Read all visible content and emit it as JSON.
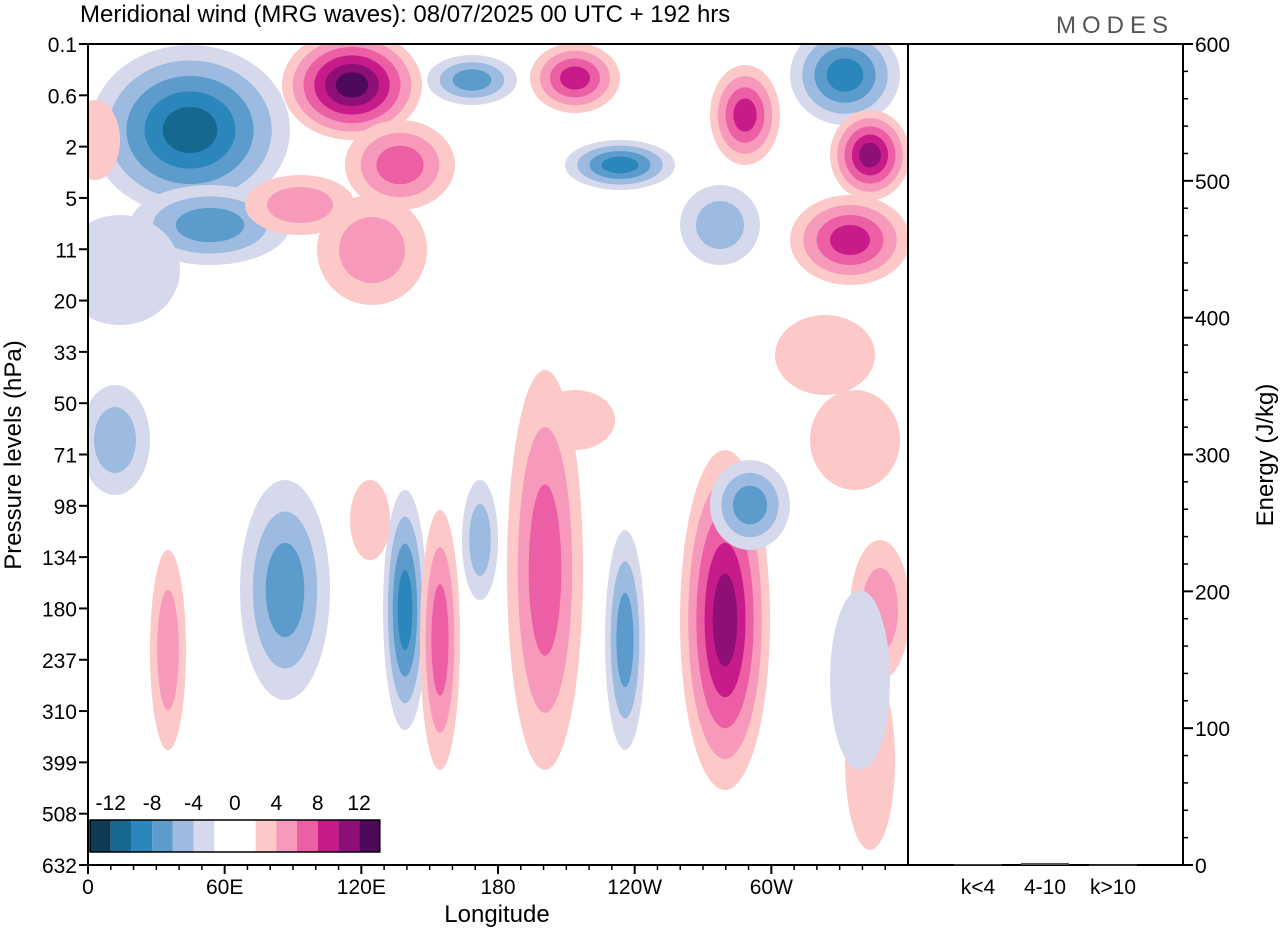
{
  "title": "Meridional wind (MRG waves):  08/07/2025  00 UTC  + 192 hrs",
  "brand": "MODES",
  "chart_data": [
    {
      "type": "heatmap",
      "title": "Meridional wind (MRG waves):  08/07/2025  00 UTC  + 192 hrs",
      "xlabel": "Longitude",
      "ylabel": "Pressure levels (hPa)",
      "x_ticks": [
        "0",
        "60E",
        "120E",
        "180",
        "120W",
        "60W"
      ],
      "x_range_deg": [
        0,
        360
      ],
      "y_ticks": [
        "0.1",
        "0.6",
        "2",
        "5",
        "11",
        "20",
        "33",
        "50",
        "71",
        "98",
        "134",
        "180",
        "237",
        "310",
        "399",
        "508",
        "632"
      ],
      "colorbar": {
        "tick_labels": [
          "-12",
          "-8",
          "-4",
          "0",
          "4",
          "8",
          "12"
        ],
        "colors": [
          "#0f3a56",
          "#176891",
          "#2a86bb",
          "#5b9ccc",
          "#9dbbe0",
          "#d6d9ec",
          "#ffffff",
          "#ffffff",
          "#fcc8c8",
          "#f799bb",
          "#ec5fa5",
          "#c71b8a",
          "#8e0f76",
          "#4e0a5a"
        ]
      },
      "contours": {
        "negative": [
          [
            0,
            0.6,
            0.36
          ],
          [
            2,
            0.47,
            0.67
          ],
          [
            3,
            0.44,
            0.36
          ],
          [
            4,
            0.9,
            0.3
          ],
          [
            6,
            0.57,
            0.46
          ],
          [
            7,
            0.95,
            0.42
          ],
          [
            8,
            0.28,
            0.56
          ],
          [
            9,
            0.63,
            0.52
          ],
          [
            10,
            0.98,
            0.26
          ],
          [
            11,
            0.1,
            0.7
          ],
          [
            13,
            0.54,
            0.51
          ],
          [
            14,
            0.04,
            0.86
          ]
        ],
        "positive": [
          [
            1,
            0.55,
            0.76
          ],
          [
            3,
            0.78,
            0.62
          ],
          [
            5,
            0.86,
            0.5
          ],
          [
            6,
            0.3,
            0.32
          ],
          [
            8,
            0.72,
            0.41
          ],
          [
            9,
            0.16,
            0.78
          ],
          [
            10,
            0.44,
            0.3
          ],
          [
            11,
            0.9,
            0.55
          ],
          [
            12,
            0.66,
            0.49
          ],
          [
            14,
            0.38,
            0.73
          ],
          [
            15,
            0.12,
            0.5
          ]
        ]
      }
    },
    {
      "type": "bar",
      "categories": [
        "k<4",
        "4-10",
        "k>10"
      ],
      "values": [
        0.5,
        1.5,
        0.3
      ],
      "ylabel": "Energy (J/kg)",
      "ylim": [
        0,
        600
      ],
      "yticks": [
        0,
        100,
        200,
        300,
        400,
        500,
        600
      ]
    }
  ]
}
